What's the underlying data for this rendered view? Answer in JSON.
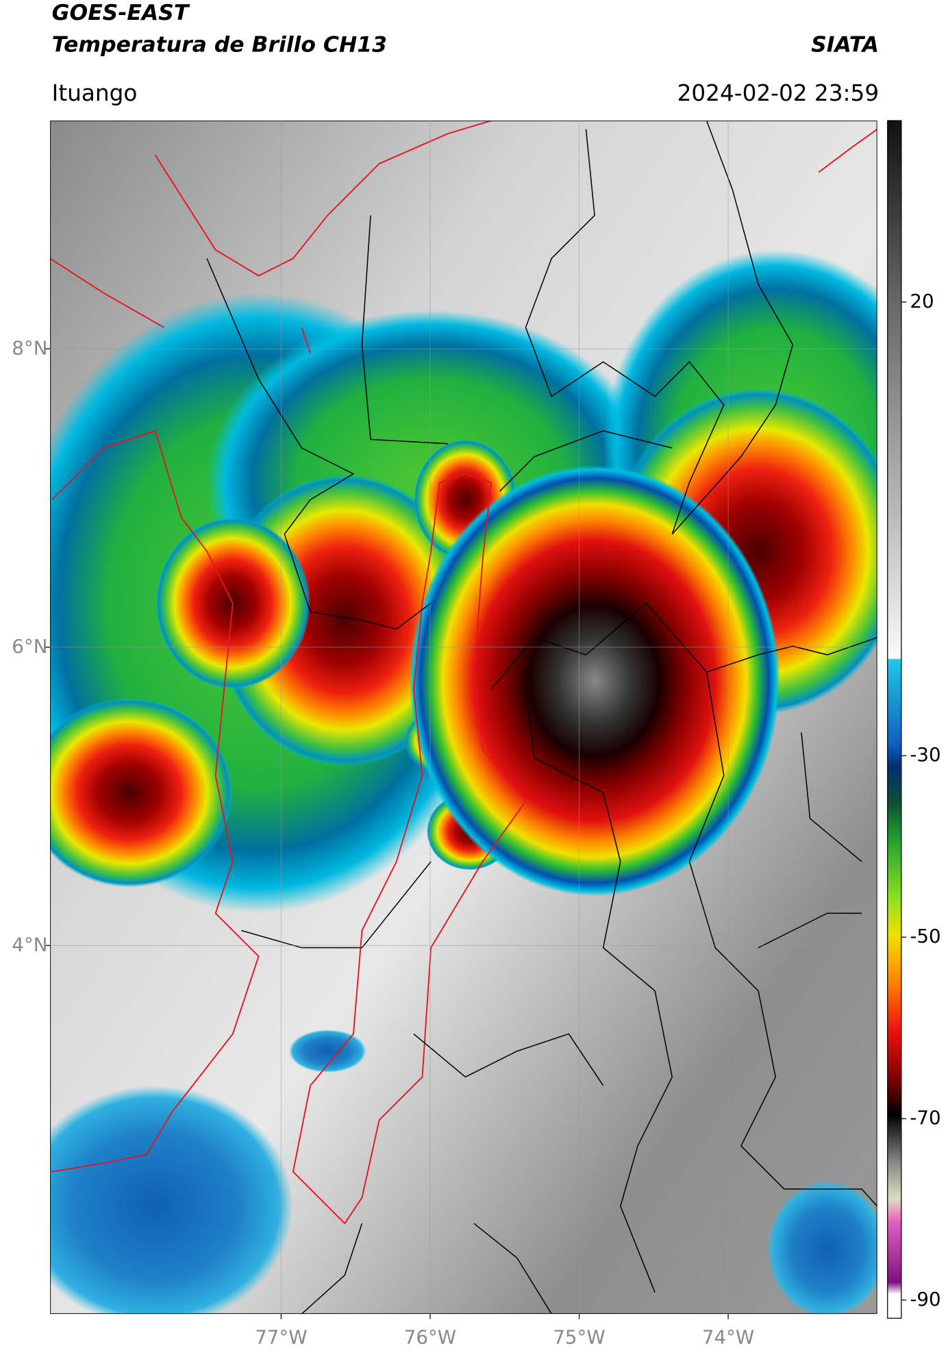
{
  "header": {
    "title": "GOES-EAST",
    "subtitle": "Temperatura de Brillo CH13",
    "brand": "SIATA",
    "location": "Ituango",
    "datetime": "2024-02-02 23:59"
  },
  "chart_data": {
    "type": "map",
    "xlim": [
      -78.55,
      -73
    ],
    "ylim": [
      1.53,
      9.53
    ],
    "xticks": [
      {
        "value": -77,
        "label": "77°W"
      },
      {
        "value": -76,
        "label": "76°W"
      },
      {
        "value": -75,
        "label": "75°W"
      },
      {
        "value": -74,
        "label": "74°W"
      }
    ],
    "yticks": [
      {
        "value": 8,
        "label": "8°N"
      },
      {
        "value": 6,
        "label": "6°N"
      },
      {
        "value": 4,
        "label": "4°N"
      }
    ],
    "grid": true,
    "colorbar": {
      "lim": [
        -92,
        40
      ],
      "ticks": [
        20,
        -30,
        -50,
        -70,
        -90
      ]
    }
  }
}
